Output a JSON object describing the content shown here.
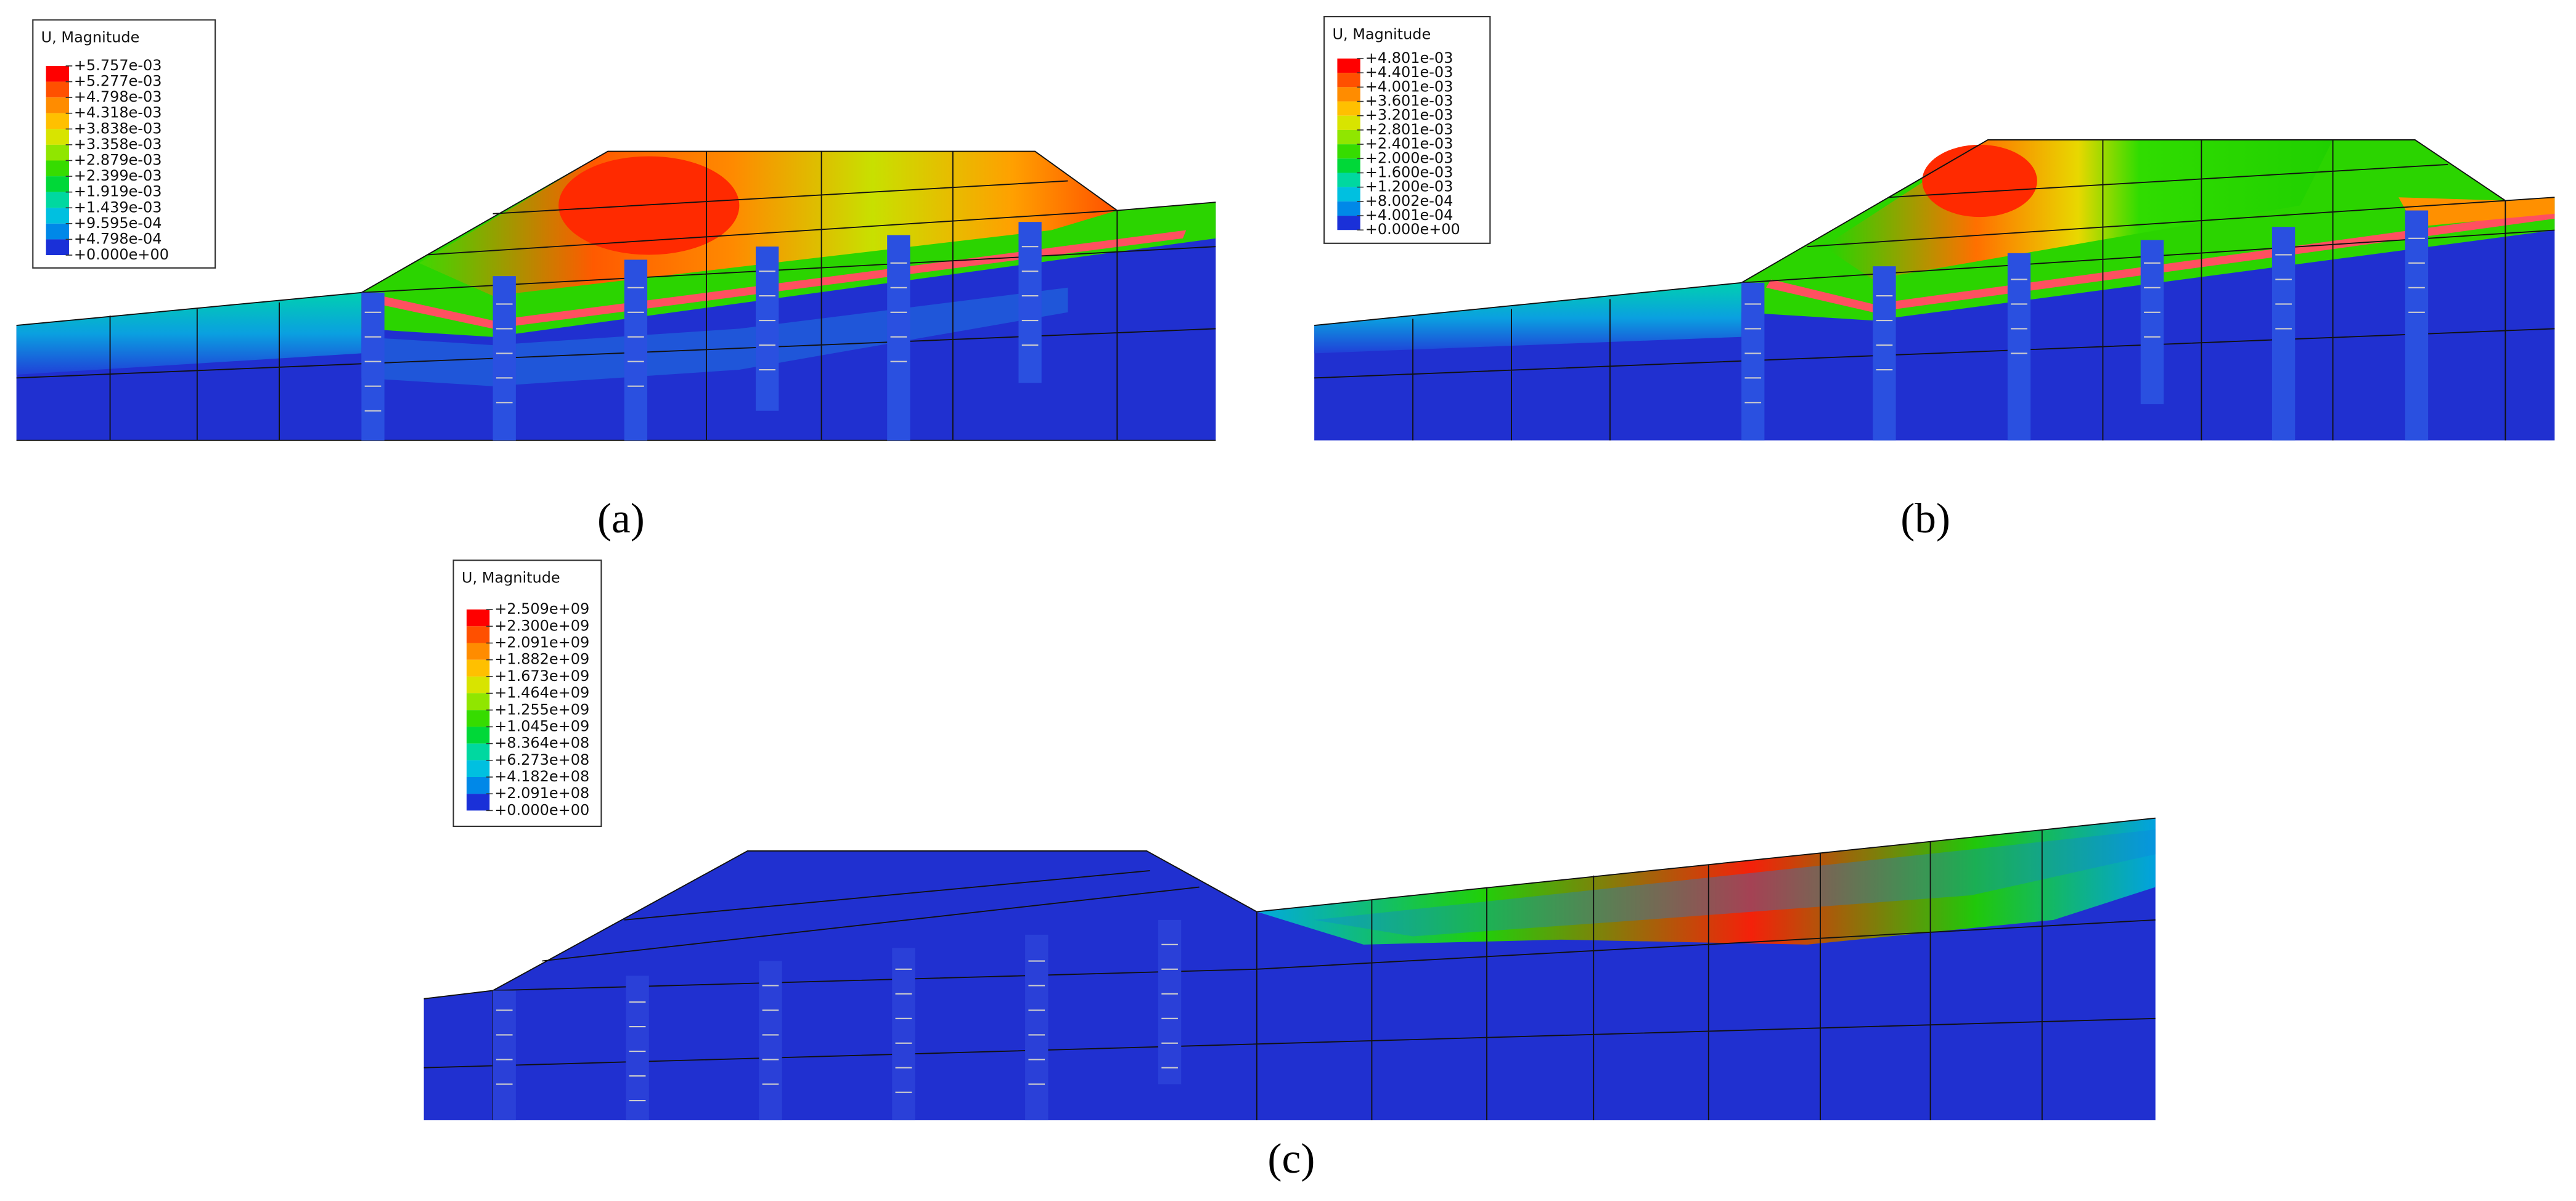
{
  "panels": [
    {
      "label": "(a)",
      "legend": {
        "title": "U, Magnitude",
        "values": [
          "+5.757e-03",
          "+5.277e-03",
          "+4.798e-03",
          "+4.318e-03",
          "+3.838e-03",
          "+3.358e-03",
          "+2.879e-03",
          "+2.399e-03",
          "+1.919e-03",
          "+1.439e-03",
          "+9.595e-04",
          "+4.798e-04",
          "+0.000e+00"
        ]
      }
    },
    {
      "label": "(b)",
      "legend": {
        "title": "U, Magnitude",
        "values": [
          "+4.801e-03",
          "+4.401e-03",
          "+4.001e-03",
          "+3.601e-03",
          "+3.201e-03",
          "+2.801e-03",
          "+2.401e-03",
          "+2.000e-03",
          "+1.600e-03",
          "+1.200e-03",
          "+8.002e-04",
          "+4.001e-04",
          "+0.000e+00"
        ]
      }
    },
    {
      "label": "(c)",
      "legend": {
        "title": "U, Magnitude",
        "values": [
          "+2.509e+09",
          "+2.300e+09",
          "+2.091e+09",
          "+1.882e+09",
          "+1.673e+09",
          "+1.464e+09",
          "+1.255e+09",
          "+1.045e+09",
          "+8.364e+08",
          "+6.273e+08",
          "+4.182e+08",
          "+2.091e+08",
          "+0.000e+00"
        ]
      }
    }
  ]
}
